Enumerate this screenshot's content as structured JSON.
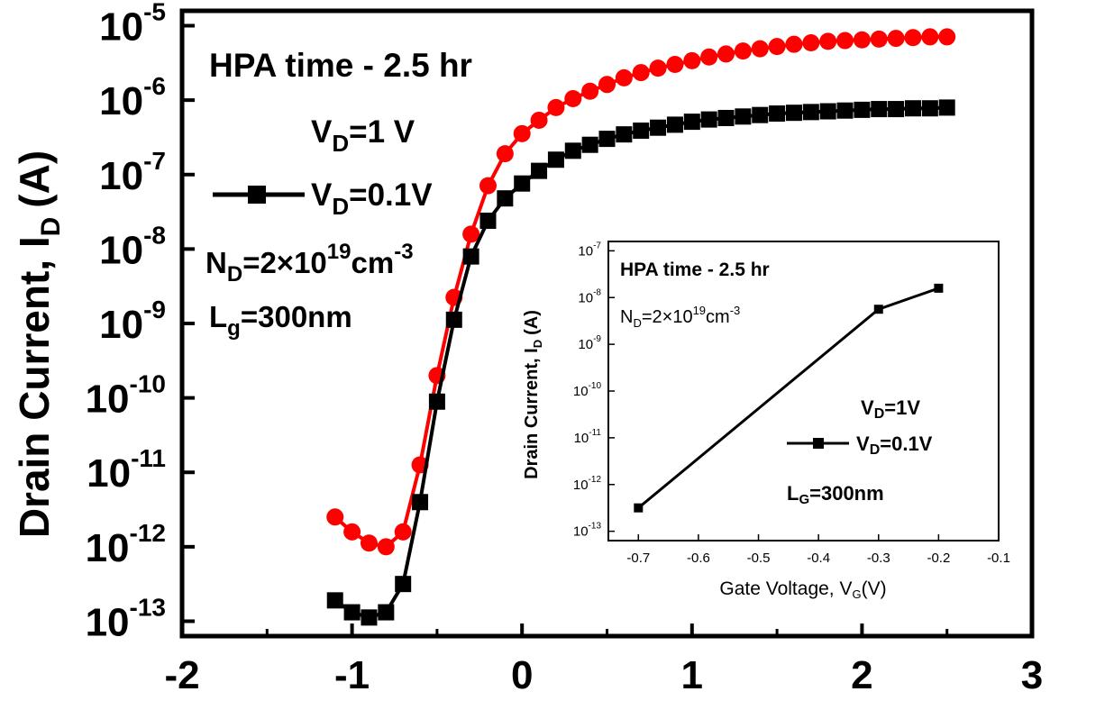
{
  "chart_data": [
    {
      "type": "scatter",
      "ylabel": "Drain Current, I",
      "ylabel_sub": "D",
      "ylabel_unit": "(A)",
      "xlabel": "",
      "xlim": [
        -2,
        3
      ],
      "ylim_exp": [
        -13.2,
        -4.8
      ],
      "y_scale": "log",
      "x_ticks": [
        "-2",
        "-1",
        "0",
        "1",
        "2",
        "3"
      ],
      "y_ticks": [
        {
          "base": "10",
          "exp": "-5"
        },
        {
          "base": "10",
          "exp": "-6"
        },
        {
          "base": "10",
          "exp": "-7"
        },
        {
          "base": "10",
          "exp": "-8"
        },
        {
          "base": "10",
          "exp": "-9"
        },
        {
          "base": "10",
          "exp": "-10"
        },
        {
          "base": "10",
          "exp": "-11"
        },
        {
          "base": "10",
          "exp": "-12"
        },
        {
          "base": "10",
          "exp": "-13"
        }
      ],
      "annotations": {
        "title": "HPA time - 2.5 hr",
        "vd1_main": "V",
        "vd1_sub": "D",
        "vd1_rest": "=1 V",
        "vd2_main": "V",
        "vd2_sub": "D",
        "vd2_rest": "=0.1V",
        "nd_main": "N",
        "nd_sub": "D",
        "nd_mid": "=2×10",
        "nd_sup": "19",
        "nd_unit": "cm",
        "nd_unit_sup": "-3",
        "lg_main": "L",
        "lg_sub": "g",
        "lg_rest": "=300nm"
      },
      "series": [
        {
          "legend": "V_D=1 V",
          "color": "#ff0000",
          "marker": "circle",
          "x": [
            -1.1,
            -1.0,
            -0.9,
            -0.8,
            -0.7,
            -0.6,
            -0.5,
            -0.4,
            -0.3,
            -0.2,
            -0.1,
            0.0,
            0.1,
            0.2,
            0.3,
            0.4,
            0.5,
            0.6,
            0.7,
            0.8,
            0.9,
            1.0,
            1.1,
            1.2,
            1.3,
            1.4,
            1.5,
            1.6,
            1.7,
            1.8,
            1.9,
            2.0,
            2.1,
            2.2,
            2.3,
            2.4,
            2.5
          ],
          "log10_y": [
            -11.6,
            -11.8,
            -11.95,
            -12.0,
            -11.8,
            -10.9,
            -9.7,
            -8.65,
            -7.8,
            -7.15,
            -6.72,
            -6.45,
            -6.27,
            -6.1,
            -5.98,
            -5.88,
            -5.79,
            -5.7,
            -5.63,
            -5.57,
            -5.52,
            -5.47,
            -5.42,
            -5.38,
            -5.34,
            -5.31,
            -5.28,
            -5.25,
            -5.23,
            -5.21,
            -5.2,
            -5.19,
            -5.18,
            -5.17,
            -5.16,
            -5.15,
            -5.15
          ]
        },
        {
          "legend": "V_D=0.1V",
          "color": "#000000",
          "marker": "square",
          "x": [
            -1.1,
            -1.0,
            -0.9,
            -0.8,
            -0.7,
            -0.6,
            -0.5,
            -0.4,
            -0.3,
            -0.2,
            -0.1,
            0.0,
            0.1,
            0.2,
            0.3,
            0.4,
            0.5,
            0.6,
            0.7,
            0.8,
            0.9,
            1.0,
            1.1,
            1.2,
            1.3,
            1.4,
            1.5,
            1.6,
            1.7,
            1.8,
            1.9,
            2.0,
            2.1,
            2.2,
            2.3,
            2.4,
            2.5
          ],
          "log10_y": [
            -12.72,
            -12.88,
            -12.95,
            -12.88,
            -12.5,
            -11.4,
            -10.05,
            -8.95,
            -8.1,
            -7.62,
            -7.32,
            -7.12,
            -6.95,
            -6.8,
            -6.68,
            -6.6,
            -6.52,
            -6.46,
            -6.41,
            -6.37,
            -6.33,
            -6.29,
            -6.26,
            -6.24,
            -6.22,
            -6.2,
            -6.18,
            -6.17,
            -6.16,
            -6.15,
            -6.14,
            -6.13,
            -6.12,
            -6.12,
            -6.11,
            -6.11,
            -6.1
          ]
        }
      ]
    },
    {
      "type": "scatter",
      "ylabel": "Drain Current, I",
      "ylabel_sub": "D",
      "ylabel_unit": "(A)",
      "xlabel": "Gate Voltage, V",
      "xlabel_sub": "G",
      "xlabel_unit": "(V)",
      "xlim": [
        -0.75,
        -0.1
      ],
      "ylim_exp": [
        -13.2,
        -6.8
      ],
      "y_scale": "log",
      "x_ticks": [
        "-0.7",
        "-0.6",
        "-0.5",
        "-0.4",
        "-0.3",
        "-0.2",
        "-0.1"
      ],
      "y_ticks": [
        {
          "base": "10",
          "exp": "-7"
        },
        {
          "base": "10",
          "exp": "-8"
        },
        {
          "base": "10",
          "exp": "-9"
        },
        {
          "base": "10",
          "exp": "-10"
        },
        {
          "base": "10",
          "exp": "-11"
        },
        {
          "base": "10",
          "exp": "-12"
        },
        {
          "base": "10",
          "exp": "-13"
        }
      ],
      "annotations": {
        "title": "HPA time - 2.5 hr",
        "nd_main": "N",
        "nd_sub": "D",
        "nd_mid": "=2×10",
        "nd_sup": "19",
        "nd_unit": "cm",
        "nd_unit_sup": "-3",
        "vd1_main": "V",
        "vd1_sub": "D",
        "vd1_rest": "=1V",
        "vd2_main": "V",
        "vd2_sub": "D",
        "vd2_rest": "=0.1V",
        "lg_main": "L",
        "lg_sub": "G",
        "lg_rest": "=300nm"
      },
      "series": [
        {
          "legend": "V_D=0.1V",
          "color": "#000000",
          "marker": "square",
          "x": [
            -0.7,
            -0.3,
            -0.2
          ],
          "log10_y": [
            -12.5,
            -8.25,
            -7.8
          ]
        }
      ]
    }
  ]
}
